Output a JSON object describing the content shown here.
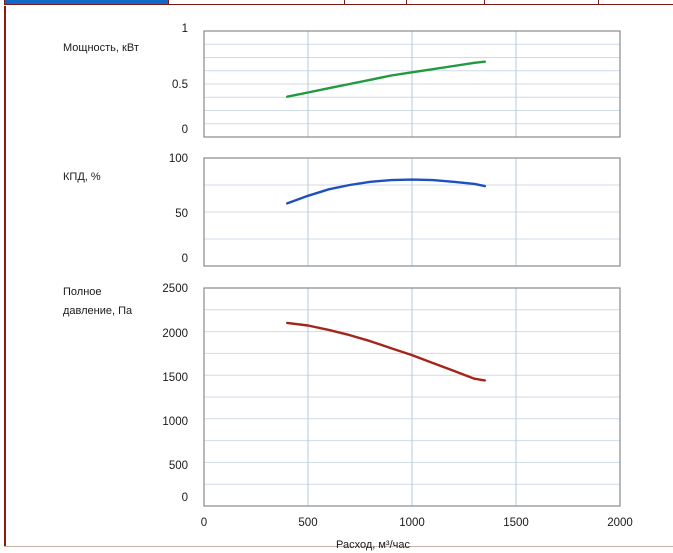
{
  "tabs": [
    {
      "color": "#1168c9"
    },
    {
      "color": "#ffffff"
    },
    {
      "color": "#ffffff"
    },
    {
      "color": "#ffffff"
    },
    {
      "color": "#ffffff"
    },
    {
      "color": "#ffffff"
    }
  ],
  "chart_data": [
    {
      "type": "line",
      "ylabel_lines": [
        "Мощность, кВт"
      ],
      "y_ticks": [
        "1",
        "0.5",
        "0"
      ],
      "ylim": [
        0,
        1
      ],
      "xlim": [
        0,
        2000
      ],
      "grid": true,
      "color": "#1f9a3c",
      "x": [
        400,
        500,
        600,
        700,
        800,
        900,
        1000,
        1100,
        1200,
        1300,
        1350
      ],
      "y": [
        0.38,
        0.42,
        0.46,
        0.5,
        0.54,
        0.58,
        0.61,
        0.64,
        0.67,
        0.7,
        0.71
      ]
    },
    {
      "type": "line",
      "ylabel_lines": [
        "КПД, %"
      ],
      "y_ticks": [
        "100",
        "50",
        "0"
      ],
      "ylim": [
        0,
        100
      ],
      "xlim": [
        0,
        2000
      ],
      "grid": true,
      "color": "#1f4fc0",
      "x": [
        400,
        500,
        600,
        700,
        800,
        900,
        1000,
        1100,
        1200,
        1300,
        1350
      ],
      "y": [
        58,
        65,
        71,
        75,
        78,
        79.5,
        80,
        79.5,
        78,
        76,
        74
      ]
    },
    {
      "type": "line",
      "ylabel_lines": [
        "Полное",
        "давление, Па"
      ],
      "y_ticks": [
        "2500",
        "2000",
        "1500",
        "1000",
        "500",
        "0"
      ],
      "ylim": [
        0,
        2500
      ],
      "xlim": [
        0,
        2000
      ],
      "grid": true,
      "color": "#a4251c",
      "x": [
        400,
        500,
        600,
        700,
        800,
        900,
        1000,
        1100,
        1200,
        1300,
        1350
      ],
      "y": [
        2100,
        2070,
        2020,
        1960,
        1890,
        1810,
        1730,
        1640,
        1550,
        1460,
        1440
      ],
      "x_ticks": [
        "0",
        "500",
        "1000",
        "1500",
        "2000"
      ],
      "xlabel": "Расход, м³/час"
    }
  ]
}
